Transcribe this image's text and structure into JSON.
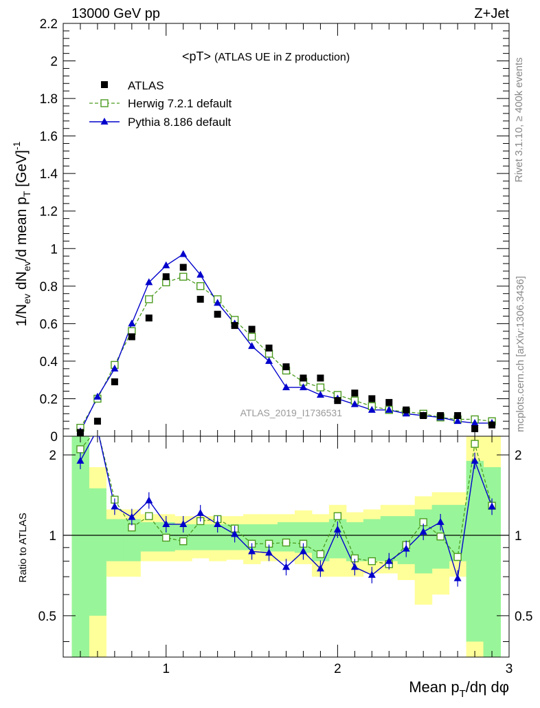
{
  "header": {
    "left": "13000 GeV pp",
    "right": "Z+Jet"
  },
  "side_labels": {
    "rivet": "Rivet 3.1.10, ≥ 400k events",
    "mcplots": "mcplots.cern.ch [arXiv:1306.3436]"
  },
  "colors": {
    "atlas": "#000000",
    "herwig": "#4a9a1e",
    "pythia": "#0000cc",
    "band_inner": "#99f599",
    "band_outer": "#ffff99"
  },
  "chart_data": [
    {
      "type": "scatter",
      "title": "<pT>",
      "subtitle": "(ATLAS UE in Z production)",
      "watermark": "ATLAS_2019_I1736531",
      "ylabel": "1/N_ev dN_ev/d mean p_T [GeV]^-1",
      "xlim": [
        0.4,
        3.0
      ],
      "ylim": [
        0,
        2.2
      ],
      "yticks": [
        0,
        0.2,
        0.4,
        0.6,
        0.8,
        1,
        1.2,
        1.4,
        1.6,
        1.8,
        2,
        2.2
      ],
      "ytick_labels": [
        "0",
        "0.2",
        "0.4",
        "0.6",
        "0.8",
        "1",
        "1.2",
        "1.4",
        "1.6",
        "1.8",
        "2",
        "2.2"
      ],
      "legend_position": "top-left",
      "x": [
        0.5,
        0.6,
        0.7,
        0.8,
        0.9,
        1.0,
        1.1,
        1.2,
        1.3,
        1.4,
        1.5,
        1.6,
        1.7,
        1.8,
        1.9,
        2.0,
        2.1,
        2.2,
        2.3,
        2.4,
        2.5,
        2.6,
        2.7,
        2.8,
        2.9
      ],
      "series": [
        {
          "name": "ATLAS",
          "values": [
            0.02,
            0.08,
            0.29,
            0.53,
            0.63,
            0.85,
            0.9,
            0.73,
            0.65,
            0.59,
            0.57,
            0.47,
            0.37,
            0.31,
            0.31,
            0.19,
            0.23,
            0.2,
            0.18,
            0.14,
            0.11,
            0.11,
            0.11,
            0.04,
            0.06
          ]
        },
        {
          "name": "Herwig 7.2.1 default",
          "values": [
            0.045,
            0.2,
            0.38,
            0.56,
            0.73,
            0.82,
            0.85,
            0.8,
            0.73,
            0.62,
            0.53,
            0.44,
            0.35,
            0.29,
            0.26,
            0.22,
            0.19,
            0.16,
            0.14,
            0.13,
            0.12,
            0.1,
            0.09,
            0.09,
            0.08
          ]
        },
        {
          "name": "Pythia 8.186 default",
          "values": [
            0.025,
            0.21,
            0.36,
            0.6,
            0.82,
            0.91,
            0.97,
            0.86,
            0.71,
            0.6,
            0.48,
            0.4,
            0.26,
            0.26,
            0.22,
            0.2,
            0.17,
            0.14,
            0.14,
            0.12,
            0.11,
            0.1,
            0.08,
            0.07,
            0.07
          ]
        }
      ]
    },
    {
      "type": "line",
      "ylabel": "Ratio to ATLAS",
      "xlabel": "Mean p_T/dη dφ",
      "xlim": [
        0.4,
        3.0
      ],
      "ylim": [
        0.35,
        2.35
      ],
      "xticks": [
        1,
        2,
        3
      ],
      "xtick_labels": [
        "1",
        "2",
        "3"
      ],
      "yticks": [
        0.5,
        1,
        2
      ],
      "ytick_labels": [
        "0.5",
        "1",
        "2"
      ],
      "x": [
        0.5,
        0.6,
        0.7,
        0.8,
        0.9,
        1.0,
        1.1,
        1.2,
        1.3,
        1.4,
        1.5,
        1.6,
        1.7,
        1.8,
        1.9,
        2.0,
        2.1,
        2.2,
        2.3,
        2.4,
        2.5,
        2.6,
        2.7,
        2.8,
        2.9
      ],
      "series": [
        {
          "name": "Herwig 7.2.1 default",
          "values": [
            2.1,
            2.5,
            1.36,
            1.07,
            1.18,
            0.98,
            0.95,
            1.13,
            1.15,
            1.06,
            0.93,
            0.93,
            0.94,
            0.93,
            0.85,
            1.18,
            0.82,
            0.8,
            0.78,
            0.92,
            1.12,
            0.99,
            0.83,
            2.2,
            1.29
          ]
        },
        {
          "name": "Pythia 8.186 default",
          "values": [
            1.9,
            2.5,
            1.28,
            1.17,
            1.35,
            1.1,
            1.1,
            1.21,
            1.1,
            1.01,
            0.87,
            0.86,
            0.76,
            0.87,
            0.75,
            1.05,
            0.76,
            0.71,
            0.8,
            0.89,
            1.03,
            1.12,
            0.69,
            1.9,
            1.28
          ]
        }
      ],
      "bands": {
        "bin_edges": [
          0.45,
          0.55,
          0.65,
          0.75,
          0.85,
          0.95,
          1.05,
          1.15,
          1.25,
          1.35,
          1.45,
          1.55,
          1.65,
          1.75,
          1.85,
          1.95,
          2.05,
          2.15,
          2.25,
          2.35,
          2.45,
          2.55,
          2.65,
          2.75,
          2.85,
          2.95
        ],
        "outer_low": [
          0.35,
          0.35,
          0.7,
          0.7,
          0.8,
          0.8,
          0.8,
          0.82,
          0.8,
          0.81,
          0.78,
          0.8,
          0.8,
          0.78,
          0.7,
          0.7,
          0.7,
          0.72,
          0.72,
          0.68,
          0.55,
          0.6,
          0.7,
          0.35,
          0.35
        ],
        "outer_high": [
          2.35,
          1.8,
          1.25,
          1.25,
          1.2,
          1.2,
          1.18,
          1.18,
          1.18,
          1.18,
          1.2,
          1.2,
          1.2,
          1.24,
          1.2,
          1.3,
          1.22,
          1.25,
          1.3,
          1.3,
          1.4,
          1.45,
          1.45,
          2.35,
          2.35
        ],
        "inner_low": [
          0.35,
          0.5,
          0.8,
          0.8,
          0.87,
          0.87,
          0.88,
          0.88,
          0.88,
          0.88,
          0.88,
          0.87,
          0.87,
          0.86,
          0.8,
          0.82,
          0.8,
          0.8,
          0.8,
          0.78,
          0.72,
          0.75,
          0.8,
          0.4,
          0.35
        ],
        "inner_high": [
          2.35,
          1.5,
          1.15,
          1.15,
          1.12,
          1.12,
          1.1,
          1.1,
          1.1,
          1.1,
          1.1,
          1.1,
          1.12,
          1.12,
          1.12,
          1.15,
          1.12,
          1.15,
          1.18,
          1.18,
          1.25,
          1.3,
          1.3,
          1.9,
          1.8
        ]
      }
    }
  ]
}
